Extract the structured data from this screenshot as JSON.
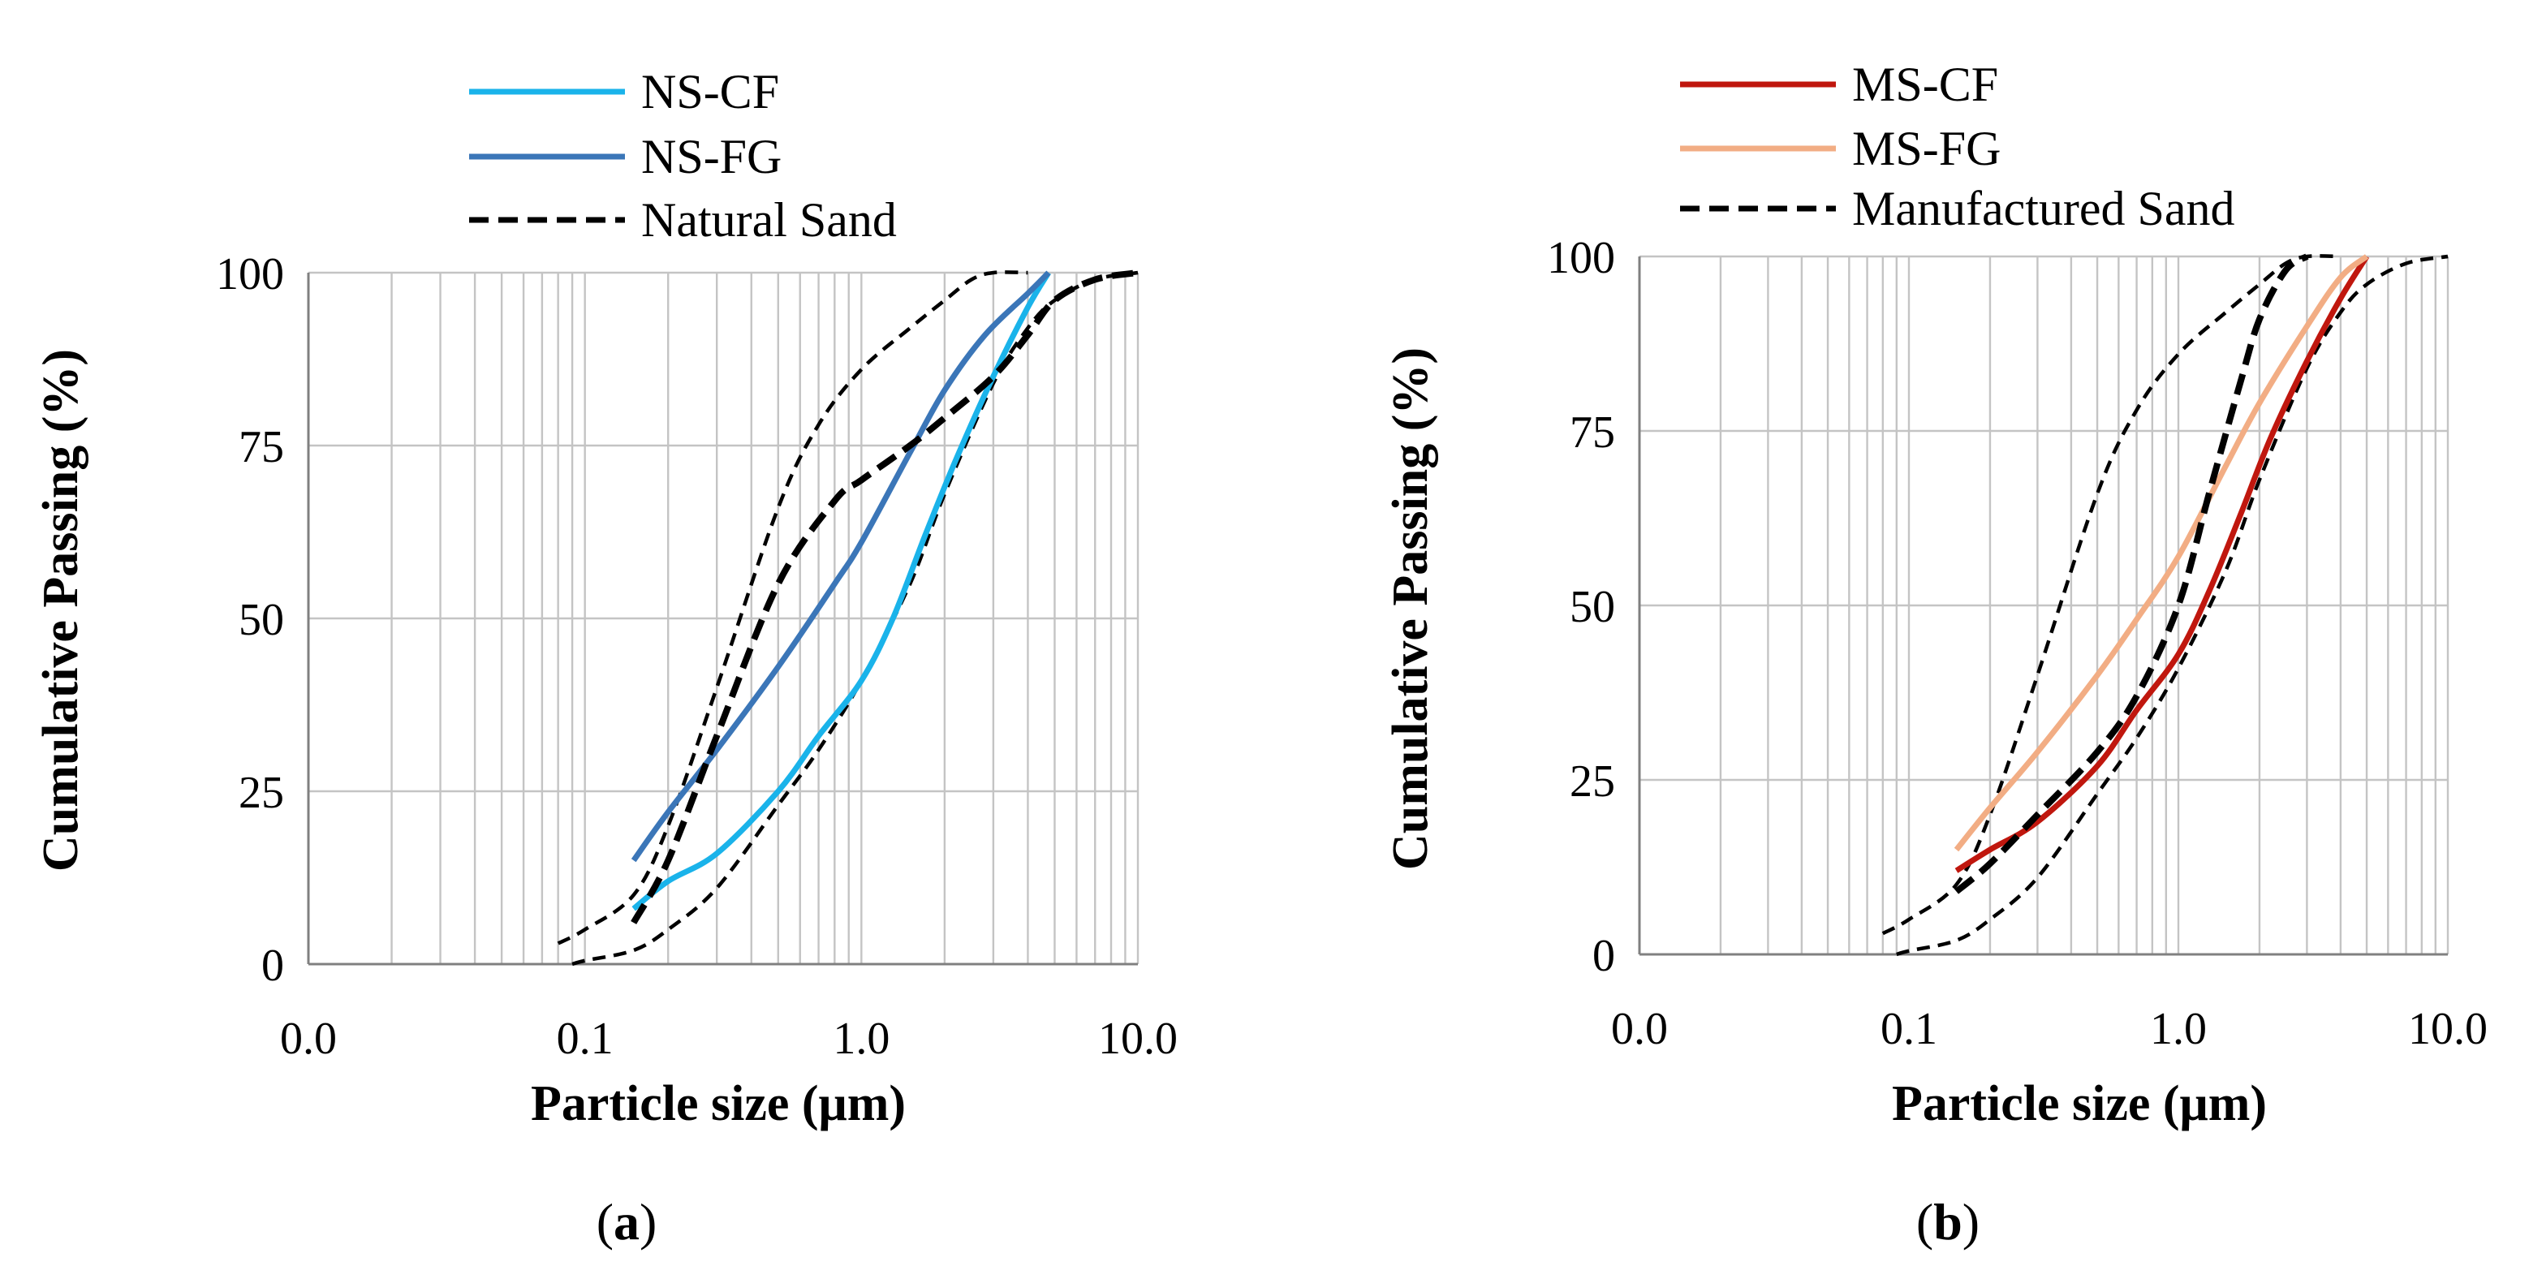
{
  "colors": {
    "ns_cf": "#1ab3ea",
    "ns_fg": "#3b76b8",
    "ms_cf": "#c0170e",
    "ms_fg": "#f2ad84",
    "limit": "#000000"
  },
  "chart_data": [
    {
      "type": "line",
      "caption_letter": "a",
      "xlabel": "Particle size (μm)",
      "ylabel": "Cumulative Passing (%)",
      "xscale": "log",
      "xlim": [
        0.01,
        10
      ],
      "ylim": [
        0,
        100
      ],
      "xticks": [
        "0.0",
        "0.1",
        "1.0",
        "10.0"
      ],
      "yticks": [
        "0",
        "25",
        "50",
        "75",
        "100"
      ],
      "grid": true,
      "legend_position": "top",
      "series": [
        {
          "name": "NS-CF",
          "style": "solid",
          "color_key": "ns_cf",
          "x": [
            0.15,
            0.2,
            0.3,
            0.5,
            0.7,
            1.0,
            1.3,
            1.7,
            2.2,
            3.0,
            4.0,
            4.75
          ],
          "y": [
            8,
            12,
            16,
            25,
            33,
            41,
            50,
            62,
            73,
            85,
            95,
            100
          ]
        },
        {
          "name": "NS-FG",
          "style": "solid",
          "color_key": "ns_fg",
          "x": [
            0.15,
            0.2,
            0.3,
            0.5,
            0.8,
            1.0,
            1.5,
            2.0,
            2.8,
            4.0,
            4.75
          ],
          "y": [
            15,
            22,
            31,
            43,
            55,
            61,
            74,
            83,
            91,
            97,
            100
          ]
        },
        {
          "name": "Natural Sand",
          "style": "dashed",
          "color_key": "limit",
          "x": [
            0.15,
            0.2,
            0.3,
            0.5,
            0.8,
            1.0,
            1.5,
            2.0,
            3.0,
            4.0,
            5.0,
            7.0,
            10.0
          ],
          "y": [
            6,
            15,
            33,
            55,
            67,
            70,
            75,
            79,
            85,
            91,
            96,
            99,
            100
          ]
        }
      ],
      "envelopes": [
        {
          "name": "Natural Sand upper limit",
          "style": "dashed",
          "x": [
            0.08,
            0.1,
            0.15,
            0.2,
            0.3,
            0.5,
            0.7,
            1.0,
            1.5,
            2.0,
            2.5,
            3.0,
            4.0
          ],
          "y": [
            3,
            5,
            10,
            20,
            40,
            66,
            78,
            86,
            92,
            96,
            99,
            100,
            100
          ]
        },
        {
          "name": "Natural Sand lower limit",
          "style": "dashed",
          "x": [
            0.09,
            0.1,
            0.15,
            0.2,
            0.3,
            0.5,
            0.7,
            1.0,
            1.5,
            2.0,
            3.0,
            4.0,
            5.0,
            7.0,
            10.0
          ],
          "y": [
            0,
            0.5,
            2,
            5,
            11,
            23,
            31,
            41,
            55,
            68,
            84,
            92,
            96,
            99,
            100
          ]
        }
      ]
    },
    {
      "type": "line",
      "caption_letter": "b",
      "xlabel": "Particle size (μm)",
      "ylabel": "Cumulative Passing (%)",
      "xscale": "log",
      "xlim": [
        0.01,
        10
      ],
      "ylim": [
        0,
        100
      ],
      "xticks": [
        "0.0",
        "0.1",
        "1.0",
        "10.0"
      ],
      "yticks": [
        "0",
        "25",
        "50",
        "75",
        "100"
      ],
      "grid": true,
      "legend_position": "top",
      "series": [
        {
          "name": "MS-CF",
          "style": "solid",
          "color_key": "ms_cf",
          "x": [
            0.15,
            0.2,
            0.3,
            0.5,
            0.7,
            1.0,
            1.3,
            1.7,
            2.2,
            3.0,
            4.0,
            5.0
          ],
          "y": [
            12,
            15,
            19,
            27,
            35,
            43,
            52,
            63,
            74,
            85,
            94,
            100
          ]
        },
        {
          "name": "MS-FG",
          "style": "solid",
          "color_key": "ms_fg",
          "x": [
            0.15,
            0.2,
            0.3,
            0.5,
            0.7,
            1.0,
            1.5,
            2.0,
            3.0,
            4.0,
            5.0
          ],
          "y": [
            15,
            21,
            29,
            40,
            48,
            57,
            70,
            79,
            90,
            97,
            100
          ]
        },
        {
          "name": "Manufactured Sand",
          "style": "dashed",
          "color_key": "limit",
          "x": [
            0.15,
            0.2,
            0.3,
            0.5,
            0.7,
            1.0,
            1.3,
            1.7,
            2.0,
            2.5,
            3.0
          ],
          "y": [
            9,
            13,
            20,
            29,
            37,
            50,
            66,
            82,
            91,
            98,
            100
          ]
        }
      ],
      "envelopes": [
        {
          "name": "Manufactured Sand upper limit",
          "style": "dashed",
          "x": [
            0.08,
            0.1,
            0.15,
            0.2,
            0.3,
            0.5,
            0.7,
            1.0,
            1.5,
            2.0,
            2.5,
            3.0,
            4.0
          ],
          "y": [
            3,
            5,
            10,
            20,
            40,
            66,
            78,
            86,
            92,
            96,
            99,
            100,
            100
          ]
        },
        {
          "name": "Manufactured Sand lower limit",
          "style": "dashed",
          "x": [
            0.09,
            0.1,
            0.15,
            0.2,
            0.3,
            0.5,
            0.7,
            1.0,
            1.5,
            2.0,
            3.0,
            4.0,
            5.0,
            7.0,
            10.0
          ],
          "y": [
            0,
            0.5,
            2,
            5,
            11,
            23,
            31,
            41,
            55,
            68,
            84,
            92,
            96,
            99,
            100
          ]
        }
      ]
    }
  ]
}
